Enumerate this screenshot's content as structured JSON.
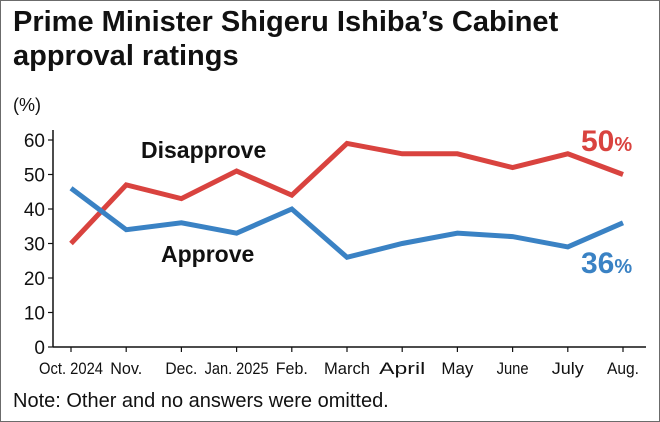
{
  "title_line1": "Prime Minister Shigeru Ishiba’s Cabinet",
  "title_line2": "approval ratings",
  "note": "Note: Other and no answers were omitted.",
  "colors": {
    "disapprove": "#d9433f",
    "approve": "#3a82c4",
    "axis": "#111111"
  },
  "chart_data": {
    "type": "line",
    "title": "Prime Minister Shigeru Ishiba’s Cabinet approval ratings",
    "ylabel": "(%)",
    "xlabel": "",
    "ylim": [
      0,
      60
    ],
    "yticks": [
      0,
      10,
      20,
      30,
      40,
      50,
      60
    ],
    "grid": false,
    "categories": [
      "Oct. 2024",
      "Nov.",
      "Dec.",
      "Jan. 2025",
      "Feb.",
      "March",
      "April",
      "May",
      "June",
      "July",
      "Aug."
    ],
    "series": [
      {
        "name": "Disapprove",
        "values": [
          30,
          47,
          43,
          51,
          44,
          59,
          56,
          56,
          52,
          56,
          50
        ],
        "end_label": "50",
        "unit": "%"
      },
      {
        "name": "Approve",
        "values": [
          46,
          34,
          36,
          33,
          40,
          26,
          30,
          33,
          32,
          29,
          36
        ],
        "end_label": "36",
        "unit": "%"
      }
    ]
  }
}
